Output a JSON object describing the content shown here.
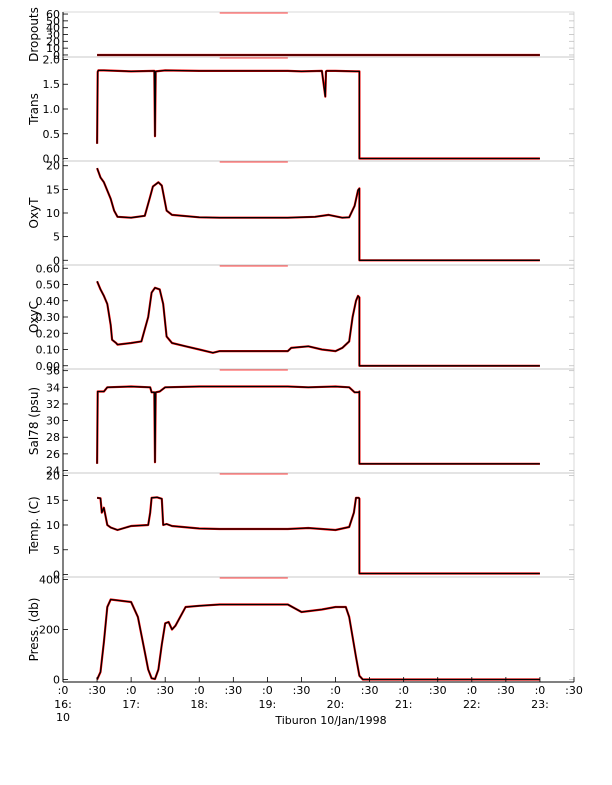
{
  "footer_label": "Tiburon 10/Jan/1998",
  "colors": {
    "trace": "#000000",
    "gap_fill": "#ff0000",
    "axis": "#000000",
    "ticks": "#c0c0c0"
  },
  "x_axis": {
    "tick_labels": [
      {
        "t": 16.0,
        "top": ":0",
        "bottom": "16:",
        "extra": "10"
      },
      {
        "t": 16.5,
        "top": ":30",
        "bottom": ""
      },
      {
        "t": 17.0,
        "top": ":0",
        "bottom": "17:"
      },
      {
        "t": 17.5,
        "top": ":30",
        "bottom": ""
      },
      {
        "t": 18.0,
        "top": ":0",
        "bottom": "18:"
      },
      {
        "t": 18.5,
        "top": ":30",
        "bottom": ""
      },
      {
        "t": 19.0,
        "top": ":0",
        "bottom": "19:"
      },
      {
        "t": 19.5,
        "top": ":30",
        "bottom": ""
      },
      {
        "t": 20.0,
        "top": ":0",
        "bottom": "20:"
      },
      {
        "t": 20.5,
        "top": ":30",
        "bottom": ""
      },
      {
        "t": 21.0,
        "top": ":0",
        "bottom": "21:"
      },
      {
        "t": 21.5,
        "top": ":30",
        "bottom": ""
      },
      {
        "t": 22.0,
        "top": ":0",
        "bottom": "22:"
      },
      {
        "t": 22.5,
        "top": ":30",
        "bottom": ""
      },
      {
        "t": 23.0,
        "top": ":0",
        "bottom": "23:"
      },
      {
        "t": 23.5,
        "top": ":30",
        "bottom": ""
      }
    ],
    "xlim": [
      16.0,
      23.5
    ]
  },
  "chart_data": [
    {
      "type": "line",
      "ylabel": "Dropouts",
      "ylim": [
        -3,
        63
      ],
      "ticks": [
        0,
        10,
        20,
        30,
        40,
        50,
        60
      ],
      "tick_labels": [
        "0",
        "10",
        "20",
        "30",
        "40",
        "50",
        "60"
      ],
      "series": [
        {
          "x": [
            16.5,
            18.3,
            18.3,
            19.3,
            19.3,
            23.0
          ],
          "y": [
            0,
            0,
            0,
            0,
            0,
            0
          ]
        }
      ],
      "gaps": [
        [
          18.3,
          19.3
        ]
      ]
    },
    {
      "type": "line",
      "ylabel": "Trans",
      "ylim": [
        -0.05,
        2.05
      ],
      "ticks": [
        0.0,
        0.5,
        1.0,
        1.5,
        2.0
      ],
      "tick_labels": [
        "0.0",
        "0.5",
        "1.0",
        "1.5",
        "2.0"
      ],
      "series": [
        {
          "x": [
            16.5,
            16.51,
            16.52,
            16.6,
            17.0,
            17.34,
            17.35,
            17.36,
            17.5,
            18.0,
            18.3,
            19.3,
            19.5,
            19.8,
            19.85,
            19.86,
            19.87,
            20.0,
            20.3,
            20.35,
            20.35,
            23.0
          ],
          "y": [
            0.3,
            1.75,
            1.78,
            1.78,
            1.76,
            1.77,
            0.45,
            1.76,
            1.78,
            1.77,
            1.77,
            1.77,
            1.76,
            1.77,
            1.25,
            1.76,
            1.77,
            1.77,
            1.76,
            1.76,
            0.0,
            0.0
          ]
        }
      ],
      "gaps": [
        [
          18.3,
          19.3
        ]
      ]
    },
    {
      "type": "line",
      "ylabel": "OxyT",
      "ylim": [
        -1,
        21
      ],
      "ticks": [
        0,
        5,
        10,
        15,
        20
      ],
      "tick_labels": [
        "0",
        "5",
        "10",
        "15",
        "20"
      ],
      "series": [
        {
          "x": [
            16.5,
            16.55,
            16.6,
            16.7,
            16.75,
            16.8,
            17.0,
            17.2,
            17.28,
            17.32,
            17.4,
            17.45,
            17.52,
            17.6,
            18.0,
            18.3,
            19.3,
            19.7,
            19.9,
            20.1,
            20.2,
            20.28,
            20.33,
            20.35,
            20.35,
            23.0
          ],
          "y": [
            19.5,
            17.5,
            16.5,
            13.0,
            10.5,
            9.2,
            9.0,
            9.4,
            13.5,
            15.6,
            16.5,
            15.8,
            10.5,
            9.6,
            9.1,
            9.0,
            9.0,
            9.2,
            9.6,
            9.0,
            9.1,
            11.5,
            14.8,
            15.2,
            0.0,
            0.0
          ]
        }
      ],
      "gaps": [
        [
          18.3,
          19.3
        ]
      ]
    },
    {
      "type": "line",
      "ylabel": "OxyC",
      "ylim": [
        -0.02,
        0.62
      ],
      "ticks": [
        0.0,
        0.1,
        0.2,
        0.3,
        0.4,
        0.5,
        0.6
      ],
      "tick_labels": [
        "0.00",
        "0.10",
        "0.20",
        "0.30",
        "0.40",
        "0.50",
        "0.60"
      ],
      "series": [
        {
          "x": [
            16.5,
            16.55,
            16.6,
            16.65,
            16.7,
            16.72,
            16.78,
            16.8,
            17.0,
            17.15,
            17.25,
            17.3,
            17.35,
            17.42,
            17.47,
            17.52,
            17.6,
            17.8,
            18.0,
            18.2,
            18.3,
            19.3,
            19.35,
            19.6,
            19.8,
            20.0,
            20.1,
            20.2,
            20.25,
            20.3,
            20.33,
            20.35,
            20.35,
            23.0
          ],
          "y": [
            0.52,
            0.47,
            0.43,
            0.38,
            0.25,
            0.16,
            0.14,
            0.13,
            0.14,
            0.15,
            0.3,
            0.45,
            0.48,
            0.47,
            0.38,
            0.18,
            0.14,
            0.12,
            0.1,
            0.08,
            0.09,
            0.09,
            0.11,
            0.12,
            0.1,
            0.09,
            0.11,
            0.15,
            0.3,
            0.4,
            0.43,
            0.42,
            0.0,
            0.0
          ]
        }
      ],
      "gaps": [
        [
          18.3,
          19.3
        ]
      ]
    },
    {
      "type": "line",
      "ylabel": "Sal78 (psu)",
      "ylim": [
        23.7,
        36.2
      ],
      "ticks": [
        24,
        26,
        28,
        30,
        32,
        34,
        36
      ],
      "tick_labels": [
        "24",
        "26",
        "28",
        "30",
        "32",
        "34",
        "36"
      ],
      "series": [
        {
          "x": [
            16.5,
            16.51,
            16.52,
            16.6,
            16.65,
            17.0,
            17.28,
            17.3,
            17.34,
            17.35,
            17.36,
            17.42,
            17.5,
            18.0,
            18.3,
            19.3,
            19.6,
            20.0,
            20.2,
            20.28,
            20.34,
            20.35,
            20.35,
            23.0
          ],
          "y": [
            24.8,
            33.5,
            33.5,
            33.5,
            34.0,
            34.1,
            34.0,
            33.4,
            33.4,
            25.0,
            33.4,
            33.5,
            34.0,
            34.1,
            34.1,
            34.1,
            34.0,
            34.1,
            34.0,
            33.4,
            33.4,
            33.5,
            24.8,
            24.8
          ]
        }
      ],
      "gaps": [
        [
          18.3,
          19.3
        ]
      ]
    },
    {
      "type": "line",
      "ylabel": "Temp. (C)",
      "ylim": [
        -0.5,
        20.5
      ],
      "ticks": [
        0,
        5,
        10,
        15,
        20
      ],
      "tick_labels": [
        "0",
        "5",
        "10",
        "15",
        "20"
      ],
      "series": [
        {
          "x": [
            16.5,
            16.55,
            16.57,
            16.6,
            16.65,
            16.7,
            16.8,
            17.0,
            17.25,
            17.28,
            17.3,
            17.38,
            17.45,
            17.47,
            17.52,
            17.6,
            18.0,
            18.3,
            19.3,
            19.6,
            20.0,
            20.2,
            20.27,
            20.3,
            20.34,
            20.35,
            20.35,
            23.0
          ],
          "y": [
            15.5,
            15.4,
            12.5,
            13.5,
            10.0,
            9.5,
            9.0,
            9.8,
            10.0,
            12.5,
            15.5,
            15.6,
            15.3,
            10.0,
            10.2,
            9.8,
            9.3,
            9.2,
            9.2,
            9.4,
            9.0,
            9.6,
            12.5,
            15.5,
            15.5,
            15.3,
            0.2,
            0.2
          ]
        }
      ],
      "gaps": [
        [
          18.3,
          19.3
        ]
      ]
    },
    {
      "type": "line",
      "ylabel": "Press. (db)",
      "ylim": [
        -10,
        410
      ],
      "ticks": [
        0,
        200,
        400
      ],
      "tick_labels": [
        "0",
        "200",
        "400"
      ],
      "series": [
        {
          "x": [
            16.5,
            16.55,
            16.6,
            16.65,
            16.7,
            17.0,
            17.1,
            17.2,
            17.25,
            17.3,
            17.35,
            17.4,
            17.45,
            17.5,
            17.55,
            17.6,
            17.65,
            17.8,
            18.0,
            18.3,
            19.3,
            19.5,
            19.8,
            20.0,
            20.15,
            20.2,
            20.3,
            20.35,
            20.4,
            21.0,
            23.0
          ],
          "y": [
            0,
            30,
            150,
            290,
            320,
            310,
            250,
            110,
            40,
            5,
            2,
            40,
            140,
            225,
            230,
            200,
            215,
            290,
            295,
            300,
            300,
            270,
            280,
            290,
            290,
            250,
            90,
            15,
            0,
            0,
            0
          ]
        }
      ],
      "gaps": [
        [
          18.3,
          19.3
        ]
      ]
    }
  ]
}
